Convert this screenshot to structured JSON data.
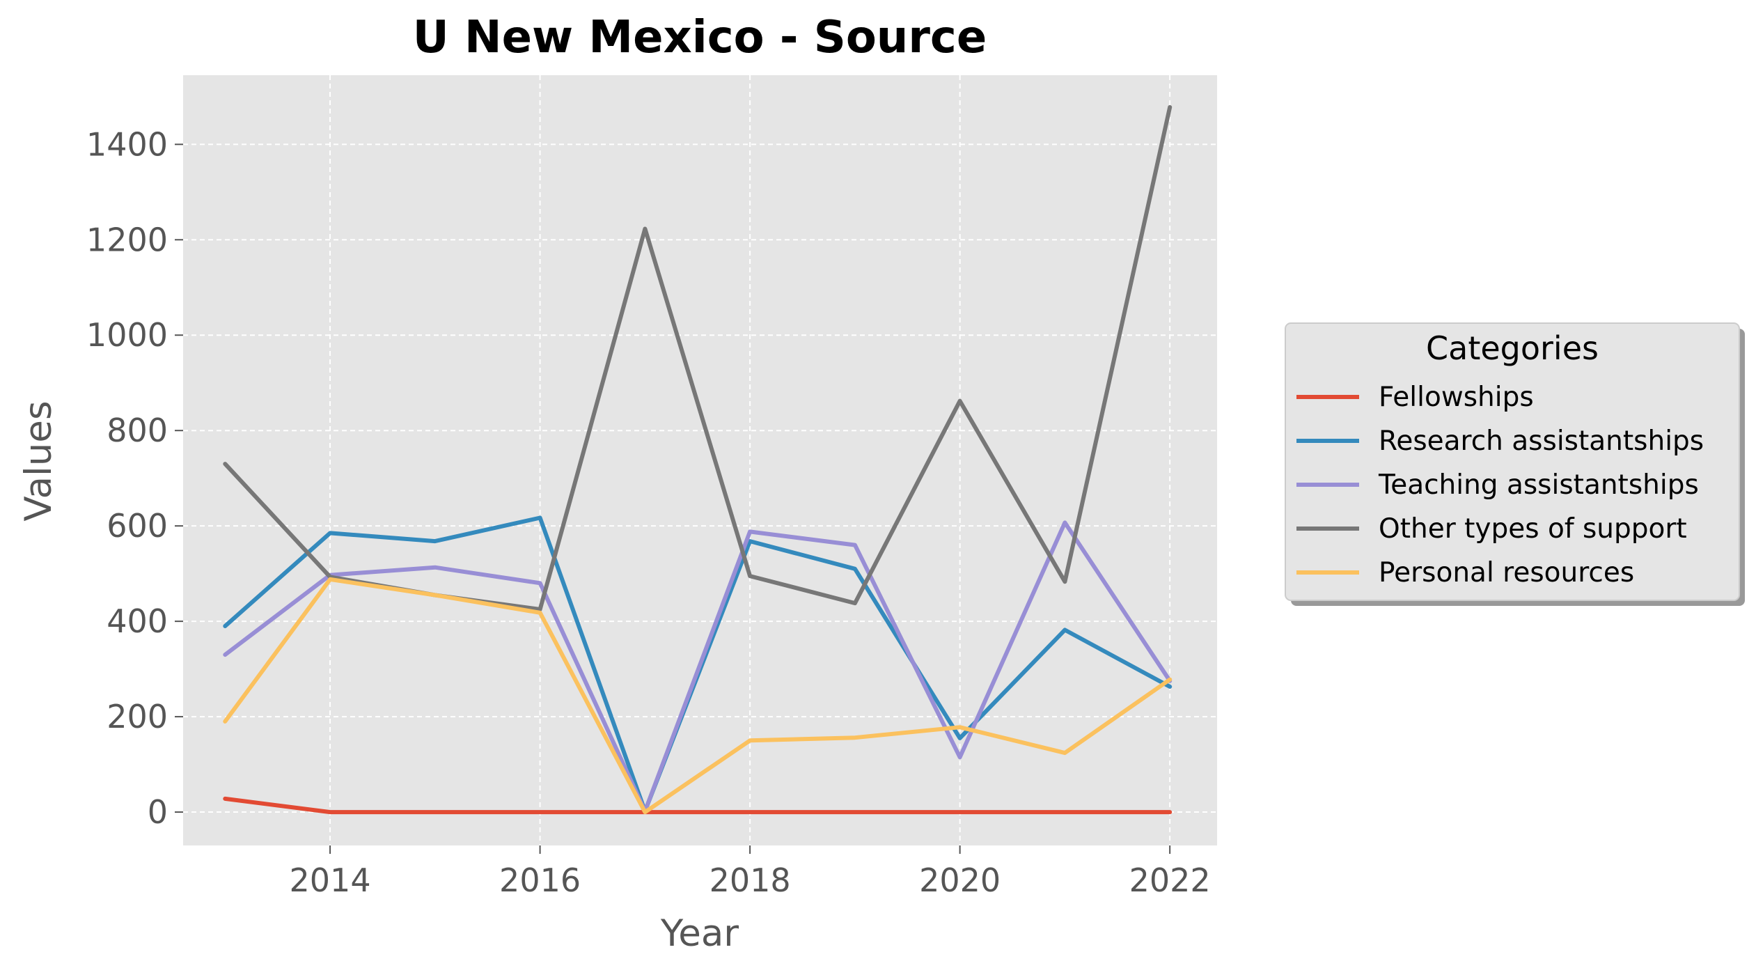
{
  "chart_data": {
    "type": "line",
    "title": "U New Mexico - Source",
    "xlabel": "Year",
    "ylabel": "Values",
    "x": [
      2013,
      2014,
      2015,
      2016,
      2017,
      2018,
      2019,
      2020,
      2021,
      2022
    ],
    "xlim": [
      2012.6,
      2022.45
    ],
    "ylim": [
      -70,
      1545
    ],
    "xticks": [
      2014,
      2016,
      2018,
      2020,
      2022
    ],
    "yticks": [
      0,
      200,
      400,
      600,
      800,
      1000,
      1200,
      1400
    ],
    "grid": true,
    "legend": {
      "title": "Categories",
      "placement": "outside right, vertically centered"
    },
    "series": [
      {
        "name": "Fellowships",
        "color": "#E24A33",
        "values": [
          28,
          0,
          0,
          0,
          0,
          0,
          0,
          0,
          0,
          0
        ]
      },
      {
        "name": "Research assistantships",
        "color": "#348ABD",
        "values": [
          390,
          585,
          568,
          617,
          2,
          568,
          510,
          155,
          382,
          263
        ]
      },
      {
        "name": "Teaching assistantships",
        "color": "#988ED5",
        "values": [
          330,
          497,
          513,
          480,
          2,
          588,
          560,
          115,
          607,
          275
        ]
      },
      {
        "name": "Other types of support",
        "color": "#777777",
        "values": [
          730,
          493,
          455,
          425,
          1223,
          495,
          438,
          862,
          483,
          1478
        ]
      },
      {
        "name": "Personal resources",
        "color": "#FBC15E",
        "values": [
          190,
          488,
          455,
          418,
          0,
          150,
          156,
          178,
          124,
          278
        ]
      }
    ]
  },
  "style": {
    "background": "#ffffff",
    "plot_background": "#E5E5E5",
    "grid_color": "#ffffff",
    "tick_label_color": "#555555",
    "legend_background": "#E5E5E5",
    "legend_border": "#CCCCCC",
    "legend_shadow": "#999999"
  }
}
